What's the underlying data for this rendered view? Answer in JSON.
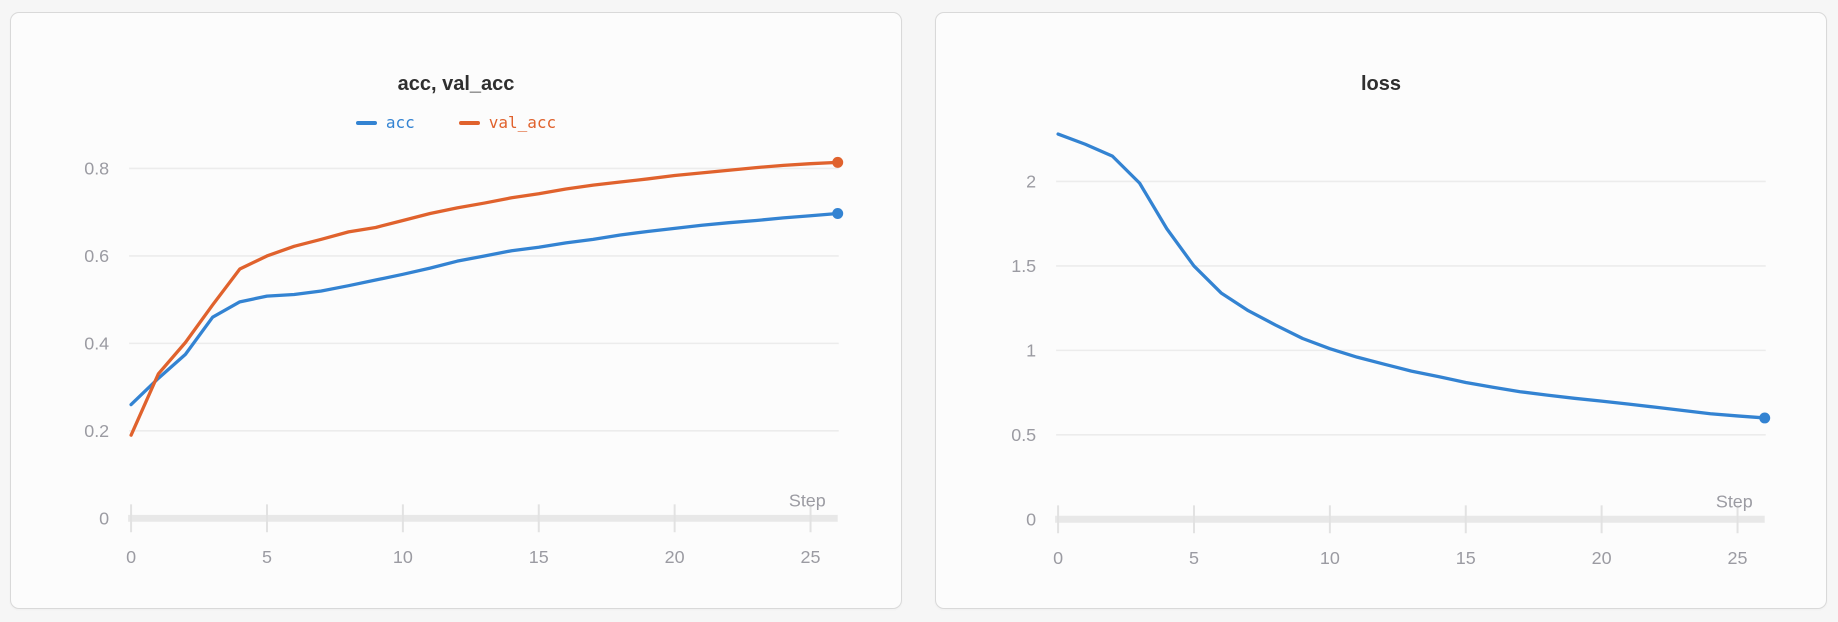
{
  "page": {
    "background": "#f6f6f6",
    "card_background": "#fcfcfc",
    "card_border": "#d9d9d9"
  },
  "colors": {
    "series_blue": "#3383d2",
    "series_orange": "#e0622d",
    "grid": "#ececec",
    "axis": "#e8e8e8",
    "tick": "#e2e2e2",
    "tick_label": "#9b9ba2",
    "title": "#2f2f2f"
  },
  "chart_data": [
    {
      "type": "line",
      "title": "acc, val_acc",
      "xlabel": "Step",
      "legend": [
        "acc",
        "val_acc"
      ],
      "legend_position": "top",
      "grid": true,
      "end_marker": true,
      "xlim": [
        0,
        26
      ],
      "ylim": [
        0,
        0.88
      ],
      "x": [
        0,
        1,
        2,
        3,
        4,
        5,
        6,
        7,
        8,
        9,
        10,
        11,
        12,
        13,
        14,
        15,
        16,
        17,
        18,
        19,
        20,
        21,
        22,
        23,
        24,
        25,
        26
      ],
      "xticks": [
        0,
        5,
        10,
        15,
        20,
        25
      ],
      "xtick_labels": [
        "0",
        "5",
        "10",
        "15",
        "20",
        "25"
      ],
      "yticks": [
        0,
        0.2,
        0.4,
        0.6,
        0.8
      ],
      "ytick_labels": [
        "0",
        "0.2",
        "0.4",
        "0.6",
        "0.8"
      ],
      "series": [
        {
          "name": "acc",
          "color": "#3383d2",
          "values": [
            0.26,
            0.32,
            0.375,
            0.46,
            0.495,
            0.508,
            0.512,
            0.52,
            0.532,
            0.545,
            0.558,
            0.572,
            0.588,
            0.6,
            0.612,
            0.62,
            0.63,
            0.638,
            0.648,
            0.656,
            0.663,
            0.67,
            0.676,
            0.681,
            0.687,
            0.692,
            0.697
          ]
        },
        {
          "name": "val_acc",
          "color": "#e0622d",
          "values": [
            0.19,
            0.33,
            0.402,
            0.488,
            0.57,
            0.6,
            0.622,
            0.638,
            0.655,
            0.665,
            0.681,
            0.697,
            0.71,
            0.721,
            0.733,
            0.742,
            0.753,
            0.762,
            0.769,
            0.776,
            0.784,
            0.79,
            0.796,
            0.802,
            0.807,
            0.811,
            0.814
          ]
        }
      ]
    },
    {
      "type": "line",
      "title": "loss",
      "xlabel": "Step",
      "legend": null,
      "grid": true,
      "end_marker": true,
      "xlim": [
        0,
        26
      ],
      "ylim": [
        0,
        2.38
      ],
      "x": [
        0,
        1,
        2,
        3,
        4,
        5,
        6,
        7,
        8,
        9,
        10,
        11,
        12,
        13,
        14,
        15,
        16,
        17,
        18,
        19,
        20,
        21,
        22,
        23,
        24,
        25,
        26
      ],
      "xticks": [
        0,
        5,
        10,
        15,
        20,
        25
      ],
      "xtick_labels": [
        "0",
        "5",
        "10",
        "15",
        "20",
        "25"
      ],
      "yticks": [
        0,
        0.5,
        1,
        1.5,
        2
      ],
      "ytick_labels": [
        "0",
        "0.5",
        "1",
        "1.5",
        "2"
      ],
      "series": [
        {
          "name": "loss",
          "color": "#3383d2",
          "values": [
            2.28,
            2.22,
            2.15,
            1.99,
            1.72,
            1.5,
            1.34,
            1.235,
            1.15,
            1.07,
            1.01,
            0.96,
            0.918,
            0.877,
            0.845,
            0.81,
            0.782,
            0.755,
            0.735,
            0.716,
            0.7,
            0.682,
            0.663,
            0.644,
            0.625,
            0.612,
            0.6
          ]
        }
      ]
    }
  ]
}
